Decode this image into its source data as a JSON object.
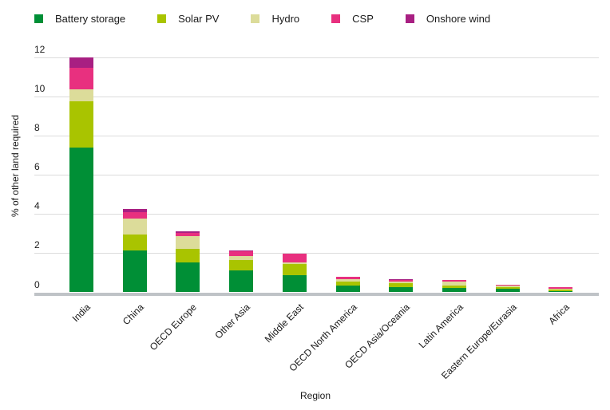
{
  "chart_data": {
    "type": "bar",
    "stacked": true,
    "title": "",
    "xlabel": "Region",
    "ylabel": "% of other land required",
    "ylim": [
      0,
      12
    ],
    "yticks": [
      0,
      2,
      4,
      6,
      8,
      10,
      12
    ],
    "grid": true,
    "legend_position": "top",
    "categories": [
      "India",
      "China",
      "OECD Europe",
      "Other Asia",
      "Middle East",
      "OECD North America",
      "OECD Asia/Oceania",
      "Latin America",
      "Eastern Europe/Eurasia",
      "Africa"
    ],
    "series": [
      {
        "name": "Battery storage",
        "color": "#008f36",
        "values": [
          7.4,
          2.15,
          1.54,
          1.13,
          0.89,
          0.36,
          0.28,
          0.21,
          0.19,
          0.08
        ]
      },
      {
        "name": "Solar PV",
        "color": "#a9c400",
        "values": [
          2.36,
          0.8,
          0.67,
          0.53,
          0.57,
          0.2,
          0.18,
          0.15,
          0.07,
          0.08
        ]
      },
      {
        "name": "Hydro",
        "color": "#dcdc9a",
        "values": [
          0.59,
          0.8,
          0.65,
          0.19,
          0.07,
          0.11,
          0.11,
          0.19,
          0.08,
          0.04
        ]
      },
      {
        "name": "CSP",
        "color": "#e8307f",
        "values": [
          1.1,
          0.34,
          0.16,
          0.23,
          0.46,
          0.11,
          0.05,
          0.08,
          0.04,
          0.07
        ]
      },
      {
        "name": "Onshore wind",
        "color": "#a81f82",
        "values": [
          0.53,
          0.15,
          0.09,
          0.06,
          0.0,
          0.0,
          0.04,
          0.0,
          0.0,
          0.0
        ]
      }
    ]
  },
  "legend": {
    "items": [
      {
        "label": "Battery storage",
        "color": "#008f36"
      },
      {
        "label": "Solar PV",
        "color": "#a9c400"
      },
      {
        "label": "Hydro",
        "color": "#dcdc9a"
      },
      {
        "label": "CSP",
        "color": "#e8307f"
      },
      {
        "label": "Onshore wind",
        "color": "#a81f82"
      }
    ]
  },
  "axes": {
    "ylabel": "% of other land required",
    "xlabel": "Region",
    "yticks": [
      "0",
      "2",
      "4",
      "6",
      "8",
      "10",
      "12"
    ]
  }
}
